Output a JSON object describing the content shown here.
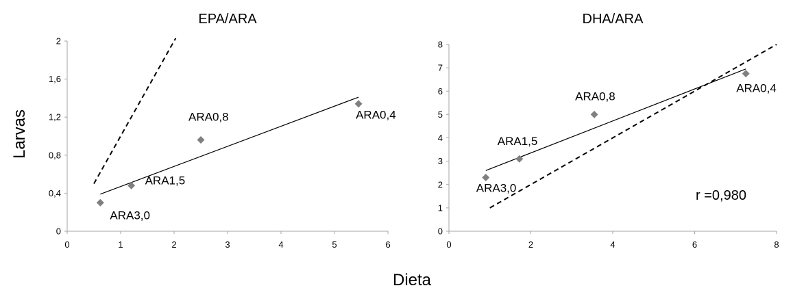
{
  "shared": {
    "ylabel": "Larvas",
    "xlabel": "Dieta"
  },
  "chart_data": [
    {
      "type": "scatter",
      "title": "EPA/ARA",
      "xlim": [
        0,
        6
      ],
      "ylim": [
        0,
        2
      ],
      "xticks": [
        "0",
        "1",
        "2",
        "3",
        "4",
        "5",
        "6"
      ],
      "yticks": [
        "0",
        "0,4",
        "0,8",
        "1,2",
        "1,6",
        "2"
      ],
      "grid": false,
      "points": [
        {
          "label": "ARA3,0",
          "x": 0.62,
          "y": 0.3
        },
        {
          "label": "ARA1,5",
          "x": 1.2,
          "y": 0.48
        },
        {
          "label": "ARA0,8",
          "x": 2.5,
          "y": 0.96
        },
        {
          "label": "ARA0,4",
          "x": 5.45,
          "y": 1.34
        }
      ],
      "trendline": {
        "x": [
          0.62,
          5.45
        ],
        "y": [
          0.39,
          1.41
        ]
      },
      "identity_line": {
        "x": [
          0.5,
          2.03
        ],
        "y": [
          0.5,
          2.03
        ]
      },
      "annotation": ""
    },
    {
      "type": "scatter",
      "title": "DHA/ARA",
      "xlim": [
        0,
        8
      ],
      "ylim": [
        0,
        8
      ],
      "xticks": [
        "0",
        "2",
        "4",
        "6",
        "8"
      ],
      "yticks": [
        "0",
        "1",
        "2",
        "3",
        "4",
        "5",
        "6",
        "7",
        "8"
      ],
      "grid": false,
      "points": [
        {
          "label": "ARA3,0",
          "x": 0.9,
          "y": 2.3
        },
        {
          "label": "ARA1,5",
          "x": 1.72,
          "y": 3.1
        },
        {
          "label": "ARA0,8",
          "x": 3.55,
          "y": 5.0
        },
        {
          "label": "ARA0,4",
          "x": 7.25,
          "y": 6.75
        }
      ],
      "trendline": {
        "x": [
          0.9,
          7.25
        ],
        "y": [
          2.6,
          6.95
        ]
      },
      "identity_line": {
        "x": [
          1.0,
          8.0
        ],
        "y": [
          1.0,
          8.0
        ]
      },
      "annotation": "r =0,980"
    }
  ],
  "colors": {
    "marker": "#808080",
    "line": "#000000",
    "axis": "#a6a6a6"
  }
}
